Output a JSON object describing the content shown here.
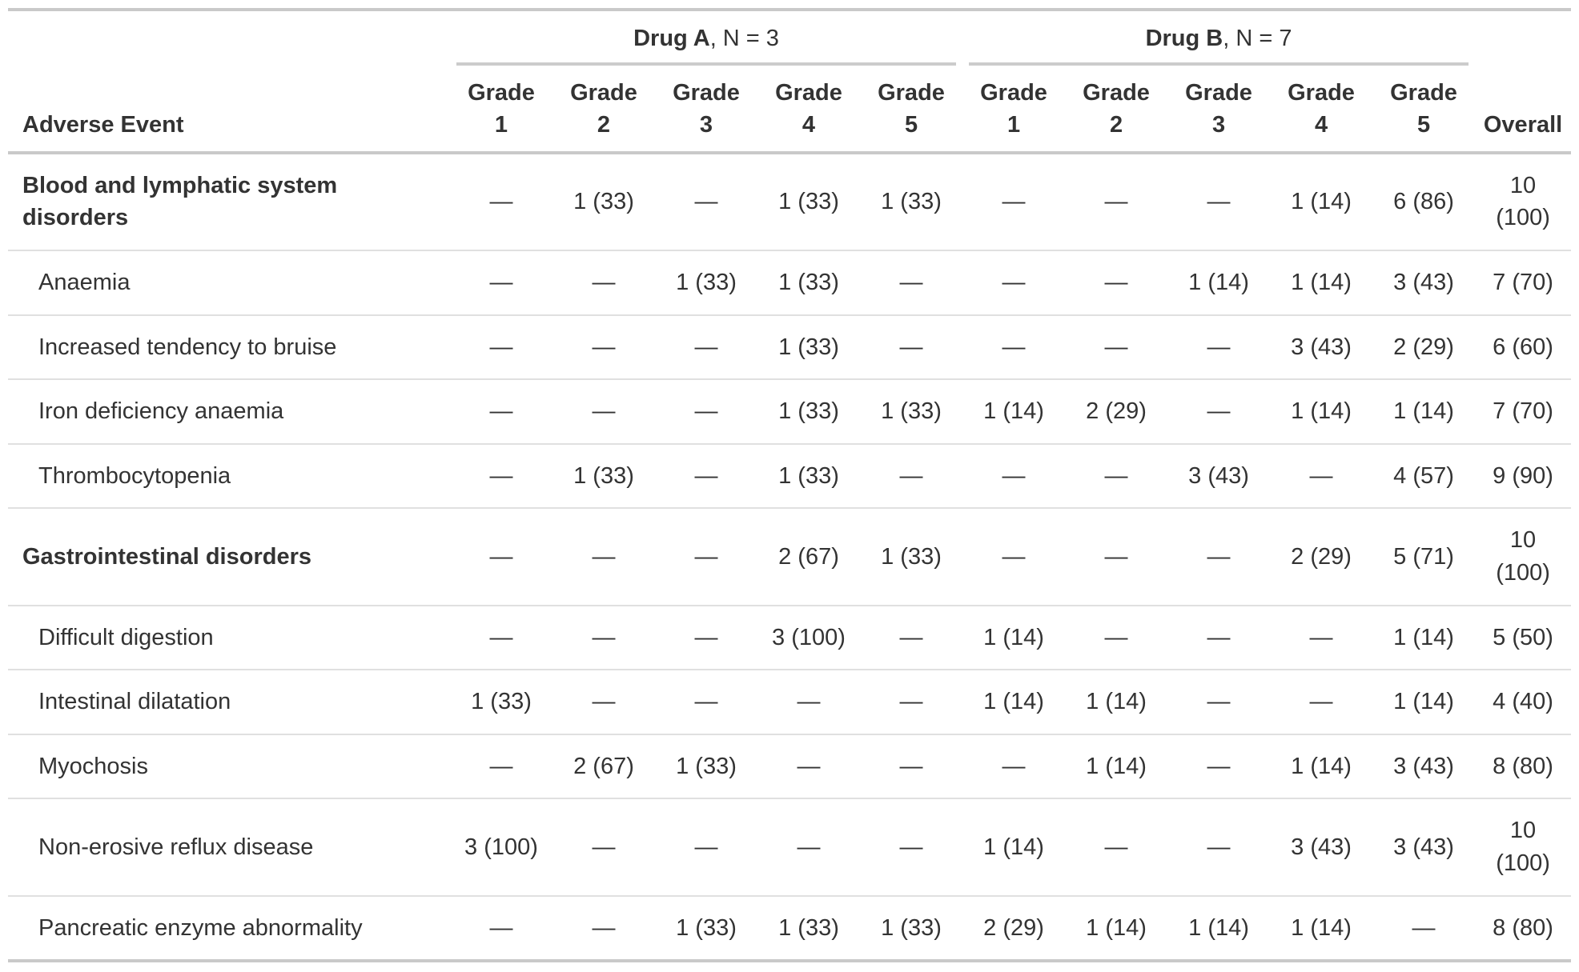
{
  "colors": {
    "text": "#333333",
    "heavy_line": "#c9c9c9",
    "spanner_line": "#cccccc",
    "light_line": "#e0e0e0"
  },
  "table": {
    "columns": {
      "stub_header": "Adverse Event",
      "overall_header": "Overall",
      "grade_word": "Grade",
      "grade_numbers": [
        "1",
        "2",
        "3",
        "4",
        "5"
      ]
    },
    "spanners": [
      {
        "drug": "Drug A",
        "n_suffix": ", N = 3"
      },
      {
        "drug": "Drug B",
        "n_suffix": ", N = 7"
      }
    ],
    "rows": [
      {
        "label": "Blood and lymphatic system disorders",
        "level": "group",
        "values": [
          "—",
          "1 (33)",
          "—",
          "1 (33)",
          "1 (33)",
          "—",
          "—",
          "—",
          "1 (14)",
          "6 (86)",
          "10 (100)"
        ]
      },
      {
        "label": "Anaemia",
        "level": "sub",
        "values": [
          "—",
          "—",
          "1 (33)",
          "1 (33)",
          "—",
          "—",
          "—",
          "1 (14)",
          "1 (14)",
          "3 (43)",
          "7 (70)"
        ]
      },
      {
        "label": "Increased tendency to bruise",
        "level": "sub",
        "values": [
          "—",
          "—",
          "—",
          "1 (33)",
          "—",
          "—",
          "—",
          "—",
          "3 (43)",
          "2 (29)",
          "6 (60)"
        ]
      },
      {
        "label": "Iron deficiency anaemia",
        "level": "sub",
        "values": [
          "—",
          "—",
          "—",
          "1 (33)",
          "1 (33)",
          "1 (14)",
          "2 (29)",
          "—",
          "1 (14)",
          "1 (14)",
          "7 (70)"
        ]
      },
      {
        "label": "Thrombocytopenia",
        "level": "sub",
        "values": [
          "—",
          "1 (33)",
          "—",
          "1 (33)",
          "—",
          "—",
          "—",
          "3 (43)",
          "—",
          "4 (57)",
          "9 (90)"
        ]
      },
      {
        "label": "Gastrointestinal disorders",
        "level": "group",
        "values": [
          "—",
          "—",
          "—",
          "2 (67)",
          "1 (33)",
          "—",
          "—",
          "—",
          "2 (29)",
          "5 (71)",
          "10 (100)"
        ]
      },
      {
        "label": "Difficult digestion",
        "level": "sub",
        "values": [
          "—",
          "—",
          "—",
          "3 (100)",
          "—",
          "1 (14)",
          "—",
          "—",
          "—",
          "1 (14)",
          "5 (50)"
        ]
      },
      {
        "label": "Intestinal dilatation",
        "level": "sub",
        "values": [
          "1 (33)",
          "—",
          "—",
          "—",
          "—",
          "1 (14)",
          "1 (14)",
          "—",
          "—",
          "1 (14)",
          "4 (40)"
        ]
      },
      {
        "label": "Myochosis",
        "level": "sub",
        "values": [
          "—",
          "2 (67)",
          "1 (33)",
          "—",
          "—",
          "—",
          "1 (14)",
          "—",
          "1 (14)",
          "3 (43)",
          "8 (80)"
        ]
      },
      {
        "label": "Non-erosive reflux disease",
        "level": "sub",
        "values": [
          "3 (100)",
          "—",
          "—",
          "—",
          "—",
          "1 (14)",
          "—",
          "—",
          "3 (43)",
          "3 (43)",
          "10 (100)"
        ]
      },
      {
        "label": "Pancreatic enzyme abnormality",
        "level": "sub",
        "values": [
          "—",
          "—",
          "1 (33)",
          "1 (33)",
          "1 (33)",
          "2 (29)",
          "1 (14)",
          "1 (14)",
          "1 (14)",
          "—",
          "8 (80)"
        ]
      }
    ]
  }
}
